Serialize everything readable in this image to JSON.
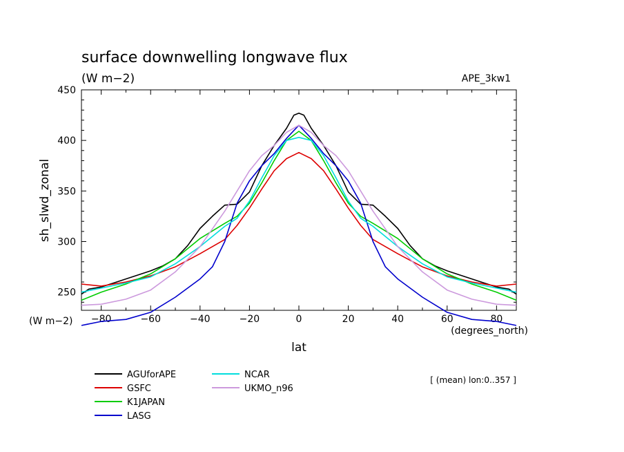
{
  "chart_data": {
    "type": "line",
    "title": "surface downwelling longwave flux",
    "subtitle": "(W m−2)",
    "experiment": "APE_3kw1",
    "xlabel": "lat",
    "ylabel": "sh_slwd_zonal",
    "x_units": "(degrees_north)",
    "y_units": "(W m−2)",
    "xlim": [
      -88,
      88
    ],
    "ylim": [
      232,
      450
    ],
    "xticks": [
      -80,
      -60,
      -40,
      -20,
      0,
      20,
      40,
      60,
      80
    ],
    "xtick_labels": [
      "−80",
      "−60",
      "−40",
      "−20",
      "0",
      "20",
      "40",
      "60",
      "80"
    ],
    "yticks": [
      250,
      300,
      350,
      400,
      450
    ],
    "grid": false,
    "legend_position": "bottom-left",
    "annotation": "[ (mean) lon:0..357 ]",
    "series": [
      {
        "name": "AGUforAPE",
        "color": "#000000",
        "x": [
          -88,
          -85,
          -80,
          -75,
          -70,
          -65,
          -60,
          -55,
          -50,
          -45,
          -40,
          -35,
          -30,
          -25,
          -20,
          -15,
          -10,
          -5,
          -2,
          0,
          2,
          5,
          10,
          15,
          20,
          25,
          30,
          35,
          40,
          45,
          50,
          55,
          60,
          65,
          70,
          75,
          80,
          85,
          88
        ],
        "y": [
          248,
          253,
          255,
          259,
          263,
          267,
          271,
          276,
          283,
          296,
          313,
          325,
          336,
          337,
          349,
          375,
          395,
          412,
          425,
          427,
          425,
          412,
          395,
          375,
          349,
          337,
          336,
          325,
          313,
          296,
          283,
          276,
          271,
          267,
          263,
          259,
          255,
          253,
          248
        ]
      },
      {
        "name": "GSFC",
        "color": "#dd0000",
        "x": [
          -88,
          -80,
          -70,
          -60,
          -50,
          -40,
          -30,
          -25,
          -20,
          -15,
          -10,
          -5,
          0,
          5,
          10,
          15,
          20,
          25,
          30,
          40,
          50,
          60,
          70,
          80,
          88
        ],
        "y": [
          258,
          256,
          260,
          266,
          275,
          288,
          302,
          316,
          333,
          352,
          370,
          382,
          388,
          382,
          370,
          352,
          333,
          316,
          302,
          288,
          275,
          266,
          260,
          256,
          258
        ]
      },
      {
        "name": "K1JAPAN",
        "color": "#00cc00",
        "x": [
          -88,
          -80,
          -70,
          -60,
          -50,
          -40,
          -30,
          -25,
          -20,
          -15,
          -10,
          -5,
          0,
          5,
          10,
          15,
          20,
          25,
          30,
          40,
          50,
          60,
          70,
          80,
          88
        ],
        "y": [
          242,
          250,
          258,
          268,
          283,
          303,
          318,
          325,
          338,
          358,
          380,
          400,
          409,
          400,
          380,
          358,
          338,
          325,
          318,
          303,
          283,
          268,
          258,
          250,
          242
        ]
      },
      {
        "name": "LASG",
        "color": "#0000cc",
        "x": [
          -88,
          -80,
          -70,
          -60,
          -50,
          -40,
          -35,
          -30,
          -25,
          -20,
          -15,
          -10,
          -5,
          0,
          5,
          10,
          15,
          20,
          25,
          30,
          35,
          40,
          50,
          60,
          70,
          80,
          88
        ],
        "y": [
          217,
          221,
          223,
          230,
          245,
          263,
          275,
          300,
          338,
          360,
          375,
          387,
          402,
          415,
          402,
          387,
          375,
          360,
          338,
          300,
          275,
          263,
          245,
          230,
          223,
          221,
          217
        ]
      },
      {
        "name": "NCAR",
        "color": "#00dddd",
        "x": [
          -88,
          -80,
          -70,
          -60,
          -50,
          -40,
          -30,
          -25,
          -20,
          -15,
          -10,
          -5,
          0,
          5,
          10,
          15,
          20,
          25,
          30,
          40,
          50,
          60,
          70,
          80,
          88
        ],
        "y": [
          250,
          254,
          259,
          265,
          278,
          295,
          315,
          323,
          340,
          363,
          385,
          400,
          403,
          400,
          385,
          363,
          340,
          323,
          315,
          295,
          278,
          265,
          259,
          254,
          250
        ]
      },
      {
        "name": "UKMO_n96",
        "color": "#cc99dd",
        "x": [
          -88,
          -80,
          -70,
          -60,
          -50,
          -40,
          -30,
          -25,
          -20,
          -15,
          -10,
          -5,
          0,
          5,
          10,
          15,
          20,
          25,
          30,
          40,
          50,
          60,
          70,
          80,
          88
        ],
        "y": [
          237,
          238,
          243,
          252,
          270,
          295,
          330,
          350,
          370,
          385,
          395,
          408,
          415,
          408,
          395,
          385,
          370,
          350,
          330,
          295,
          270,
          252,
          243,
          238,
          237
        ]
      }
    ]
  }
}
